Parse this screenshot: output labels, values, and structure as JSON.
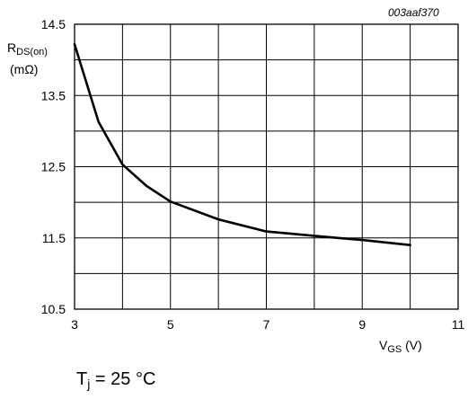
{
  "figure_code": "003aaf370",
  "annotation": {
    "prefix": "T",
    "subscript": "j",
    "suffix": " = 25 °C"
  },
  "chart_data": {
    "type": "line",
    "ylabel": {
      "main": "R",
      "subscript": "DS(on)",
      "unit": "(mΩ)"
    },
    "xlabel": {
      "main": "V",
      "subscript": "GS",
      "unit": " (V)"
    },
    "xlim": [
      3,
      11
    ],
    "ylim": [
      10.5,
      14.5
    ],
    "x_ticks": [
      3,
      5,
      7,
      9,
      11
    ],
    "y_ticks": [
      10.5,
      11.5,
      12.5,
      13.5,
      14.5
    ],
    "x_grid_step": 1,
    "y_grid_step": 0.5,
    "grid": true,
    "series": [
      {
        "x": [
          3.0,
          3.5,
          4.0,
          4.5,
          5.0,
          6.0,
          7.0,
          8.0,
          8.5,
          9.0,
          10.0
        ],
        "y": [
          14.22,
          13.13,
          12.53,
          12.23,
          12.01,
          11.76,
          11.59,
          11.53,
          11.5,
          11.47,
          11.4
        ]
      }
    ]
  }
}
